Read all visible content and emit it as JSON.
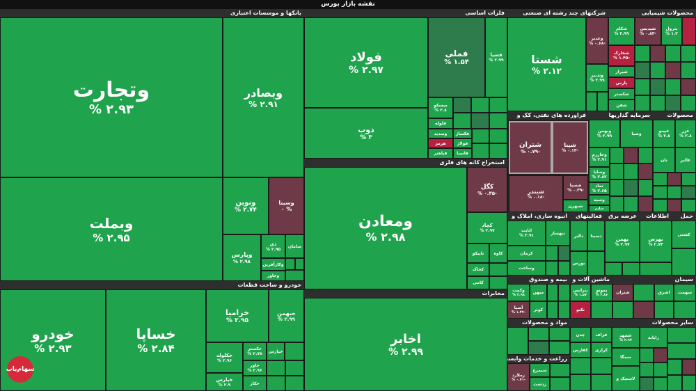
{
  "title": "نقشه بازار بورس",
  "logo_text": "سهام‌یاب",
  "sectors": [
    {
      "key": "banks",
      "label": "بانکها و موسسات اعتباری"
    },
    {
      "key": "basic_metals",
      "label": "فلزات اساسی"
    },
    {
      "key": "holdings",
      "label": "شرکتهای چند رشته ای صنعتی"
    },
    {
      "key": "chemicals",
      "label": "محصولات شیمیایی"
    },
    {
      "key": "petroleum",
      "label": "فراورده های نفتی، کک و"
    },
    {
      "key": "investment",
      "label": "سرمایه گذاریها"
    },
    {
      "key": "products",
      "label": "محصولات"
    },
    {
      "key": "metal_ores",
      "label": "استخراج کانه های فلزی"
    },
    {
      "key": "auto",
      "label": "خودرو و ساخت قطعات"
    },
    {
      "key": "telecom",
      "label": "مخابرات"
    },
    {
      "key": "mass_construction",
      "label": "انبوه سازی، املاک و"
    },
    {
      "key": "pharma",
      "label": "فعالیتهای"
    },
    {
      "key": "insurance",
      "label": "بیمه و صندوق"
    },
    {
      "key": "machinery",
      "label": "ماشین آلات و"
    },
    {
      "key": "supply",
      "label": "عرضه برق"
    },
    {
      "key": "info",
      "label": "اطلاعات"
    },
    {
      "key": "transport",
      "label": "حمل"
    },
    {
      "key": "cement",
      "label": "سیمان"
    },
    {
      "key": "food",
      "label": "مواد و محصولات"
    },
    {
      "key": "agri",
      "label": "زراعت و خدمات وابسته"
    },
    {
      "key": "other",
      "label": "سایر محصولات"
    }
  ],
  "tiles": {
    "vtejarat": {
      "name": "وتجارت",
      "chg": "% ۲.۹۳"
    },
    "vbsader": {
      "name": "وبصادر",
      "chg": "% ۲.۹۱"
    },
    "vbmellat": {
      "name": "وبملت",
      "chg": "% ۲.۹۵"
    },
    "vnovin": {
      "name": "ونوین",
      "chg": "% ۲.۷۴"
    },
    "vsina": {
      "name": "وسینا",
      "chg": "۰ %"
    },
    "vpars": {
      "name": "وپارس",
      "chg": "% ۲.۹۸"
    },
    "dey": {
      "name": "دی",
      "chg": "% ۲.۹۵"
    },
    "saman": {
      "name": "سامان",
      "chg": ""
    },
    "vkardesh": {
      "name": "وکارآفرین",
      "chg": ""
    },
    "vkhavar": {
      "name": "وخاور",
      "chg": ""
    },
    "foolad": {
      "name": "فولاد",
      "chg": "% ۲.۹۷"
    },
    "fameli": {
      "name": "فملی",
      "chg": "% ۱.۵۴"
    },
    "fsepa": {
      "name": "فسپا",
      "chg": "% ۲.۹۹"
    },
    "zob": {
      "name": "ذوب",
      "chg": "% ۳"
    },
    "mesiskoo": {
      "name": "میسکو",
      "chg": "% ۲.۸"
    },
    "fooladh": {
      "name": "فلوله",
      "chg": ""
    },
    "vsadid": {
      "name": "وسدید",
      "chg": ""
    },
    "fkhooz": {
      "name": "فکساژ",
      "chg": ""
    },
    "hormoz": {
      "name": "هرمز",
      "chg": ""
    },
    "fbahonar": {
      "name": "فباهنر",
      "chg": ""
    },
    "fvlad": {
      "name": "فولاژ",
      "chg": ""
    },
    "fasia": {
      "name": "فاسیا",
      "chg": ""
    },
    "shasta": {
      "name": "شستا",
      "chg": "% ۲.۱۲"
    },
    "vghadir": {
      "name": "وغدیر",
      "chg": "% ۰.۶۸-"
    },
    "vtadbir": {
      "name": "وتدبیر",
      "chg": "% ۲.۹۹"
    },
    "shkam": {
      "name": "شکام",
      "chg": "% ۲.۹۹"
    },
    "shpdis": {
      "name": "شپدیس",
      "chg": "% ۰.۸۳-"
    },
    "petrol": {
      "name": "پترول",
      "chg": "% ۱.۲"
    },
    "shkhark": {
      "name": "شخارک",
      "chg": "% ۱.۴۵-"
    },
    "shiras": {
      "name": "شیراز",
      "chg": ""
    },
    "paris": {
      "name": "پارس",
      "chg": ""
    },
    "shekar": {
      "name": "شکستر",
      "chg": ""
    },
    "shfn": {
      "name": "شفن",
      "chg": ""
    },
    "shtran": {
      "name": "شتران",
      "chg": "% ۰.۷۹-"
    },
    "shpna": {
      "name": "شپنا",
      "chg": "% ۰.۱۳-"
    },
    "shbndr": {
      "name": "شبندر",
      "chg": "% ۰.۱۸-"
    },
    "shsepa": {
      "name": "شسپا",
      "chg": "% ۰.۳۹-"
    },
    "shbehran": {
      "name": "شبهرن",
      "chg": ""
    },
    "vbahman": {
      "name": "وبهمن",
      "chg": "% ۲.۹۹"
    },
    "vsaba": {
      "name": "وصبا",
      "chg": ""
    },
    "vkharazm": {
      "name": "وخارزم",
      "chg": "% ۲.۹۱"
    },
    "vsaipa": {
      "name": "وساپا",
      "chg": "% ۲.۸۲"
    },
    "vamad": {
      "name": "تماد",
      "chg": "% ۲.۶۵"
    },
    "vsepah": {
      "name": "وسپه",
      "chg": "% ۱.۶۵"
    },
    "salim": {
      "name": "سلیم",
      "chg": ""
    },
    "ghapeno": {
      "name": "غپینو",
      "chg": "% ۲.۸"
    },
    "ghzr": {
      "name": "غزر",
      "chg": "% ۲.۸"
    },
    "gholtan": {
      "name": "غالبر",
      "chg": ""
    },
    "tan": {
      "name": "تان",
      "chg": ""
    },
    "vmaaden": {
      "name": "ومعادن",
      "chg": "% ۲.۹۸"
    },
    "kgol": {
      "name": "کگل",
      "chg": "% ۰.۳۵-"
    },
    "kchad": {
      "name": "کچاد",
      "chg": "% ۲.۹۷"
    },
    "kaveh": {
      "name": "کاوه",
      "chg": ""
    },
    "tapesko": {
      "name": "تاپیکو",
      "chg": ""
    },
    "kkhoz": {
      "name": "کخاک",
      "chg": ""
    },
    "kami": {
      "name": "کامی",
      "chg": ""
    },
    "khodro": {
      "name": "خودرو",
      "chg": "% ۲.۹۳"
    },
    "khsapa": {
      "name": "خساپا",
      "chg": "% ۲.۸۴"
    },
    "khzamia": {
      "name": "خزامیا",
      "chg": "% ۲.۹۵"
    },
    "khbahman": {
      "name": "خبهمن",
      "chg": "% ۲.۹۹"
    },
    "khkogelo": {
      "name": "خکلوله",
      "chg": "% ۲.۹۶"
    },
    "khkastor": {
      "name": "خکستر",
      "chg": "% ۲.۷۸"
    },
    "khavar": {
      "name": "خاور",
      "chg": "% ۲.۹۶"
    },
    "khpars": {
      "name": "خپارس",
      "chg": "% ۲.۹"
    },
    "khkar": {
      "name": "خکار",
      "chg": ""
    },
    "akhaber": {
      "name": "اخابر",
      "chg": "% ۲.۹۹"
    },
    "ethabat": {
      "name": "اثابت",
      "chg": "% ۲.۹۱"
    },
    "kerman": {
      "name": "کرمان",
      "chg": ""
    },
    "vsakht": {
      "name": "وساخت",
      "chg": ""
    },
    "vkesht": {
      "name": "وکشتی",
      "chg": ""
    },
    "tbahman": {
      "name": "ثبهساز",
      "chg": ""
    },
    "tapesh": {
      "name": "تاپیش",
      "chg": ""
    },
    "dalber": {
      "name": "دالبر",
      "chg": ""
    },
    "dsina": {
      "name": "دسینا",
      "chg": ""
    },
    "boors": {
      "name": "بورس",
      "chg": ""
    },
    "vhormoz": {
      "name": "وکمت",
      "chg": "% ۲.۹۸"
    },
    "vbimeh": {
      "name": "وبیمه",
      "chg": "% ۱.۵۸"
    },
    "asia": {
      "name": "آسیا",
      "chg": "% ۱.۴۷-"
    },
    "mihan": {
      "name": "میهن",
      "chg": ""
    },
    "kosar": {
      "name": "کوثر",
      "chg": ""
    },
    "vbani": {
      "name": "وبانک",
      "chg": "% ۲.۹"
    },
    "btran": {
      "name": "بترانس",
      "chg": "% ۱.۵۷"
    },
    "bmpars": {
      "name": "بموتو",
      "chg": "% ۲.۸۶"
    },
    "tknaro": {
      "name": "تکنو",
      "chg": ""
    },
    "antkhab": {
      "name": "انتخاب",
      "chg": ""
    },
    "sakhtar": {
      "name": "ساختار",
      "chg": ""
    },
    "bahmoz": {
      "name": "بهمن",
      "chg": "% ۲.۹۷"
    },
    "bhrs": {
      "name": "بهرس",
      "chg": "% ۲.۷۴"
    },
    "khark": {
      "name": "کشتی",
      "chg": ""
    },
    "hfrz": {
      "name": "حفارس",
      "chg": ""
    },
    "aria": {
      "name": "آریا",
      "chg": ""
    },
    "ramin": {
      "name": "رامپنا",
      "chg": ""
    },
    "thrshkr": {
      "name": "شتران",
      "chg": ""
    },
    "sharq": {
      "name": "اشرق",
      "chg": ""
    },
    "sehmat": {
      "name": "سهمت",
      "chg": ""
    },
    "glsaz": {
      "name": "گلستان",
      "chg": ""
    },
    "ghshahd": {
      "name": "غشهد",
      "chg": "% ۲.۹۷"
    },
    "rayaneh": {
      "name": "رایانه",
      "chg": ""
    },
    "mrvt": {
      "name": "سرو",
      "chg": ""
    },
    "zmallard": {
      "name": "زملارد",
      "chg": "% ۰.۷۱-"
    },
    "seemorgh": {
      "name": "سیمرغ",
      "chg": ""
    },
    "zdasht": {
      "name": "زدشت",
      "chg": ""
    },
    "chdn": {
      "name": "چدن",
      "chg": ""
    },
    "fzaf": {
      "name": "فزاف",
      "chg": ""
    },
    "kfarz": {
      "name": "کفارس",
      "chg": ""
    },
    "krazi": {
      "name": "کرازی",
      "chg": ""
    },
    "lastik": {
      "name": "لاستیک و",
      "chg": ""
    },
    "semga": {
      "name": "سمگا",
      "chg": ""
    },
    "pasa": {
      "name": "پاسا",
      "chg": ""
    }
  }
}
